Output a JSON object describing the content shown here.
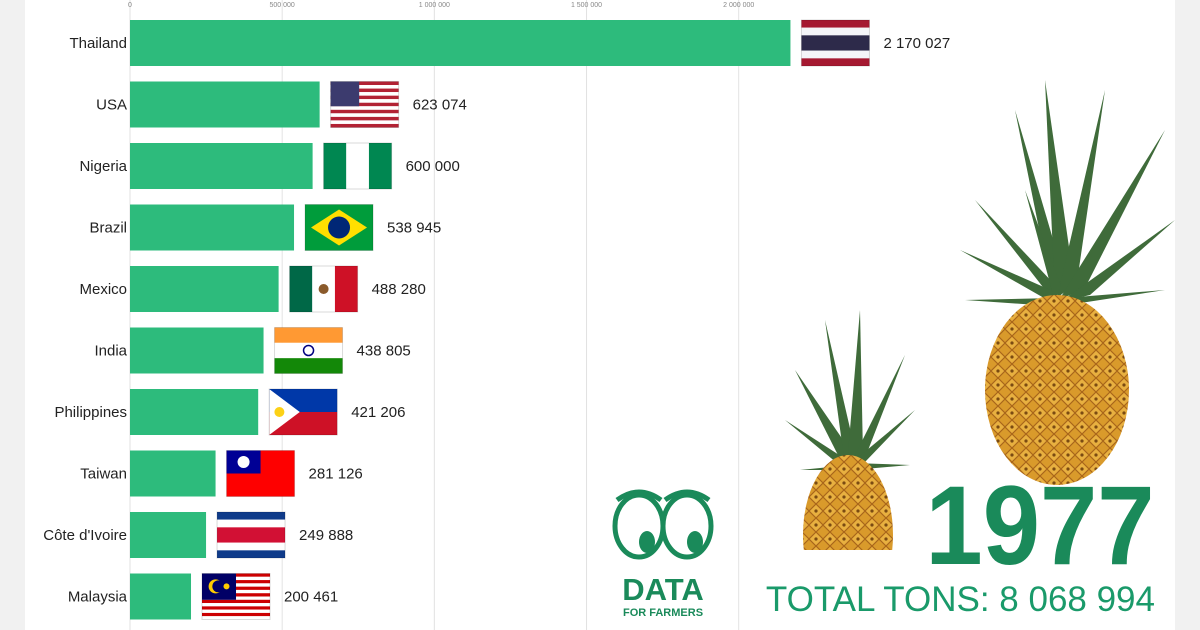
{
  "chart_data": {
    "type": "bar",
    "orientation": "horizontal",
    "categories": [
      "Thailand",
      "USA",
      "Nigeria",
      "Brazil",
      "Mexico",
      "India",
      "Philippines",
      "Taiwan",
      "Côte d'Ivoire",
      "Malaysia"
    ],
    "values": [
      2170027,
      623074,
      600000,
      538945,
      488280,
      438805,
      421206,
      281126,
      249888,
      200461
    ],
    "value_labels": [
      "2 170 027",
      "623 074",
      "600 000",
      "538 945",
      "488 280",
      "438 805",
      "421 206",
      "281 126",
      "249 888",
      "200 461"
    ],
    "xlim": [
      0,
      2300000
    ],
    "xticks": [
      0,
      500000,
      1000000,
      1500000,
      2000000
    ],
    "xtick_labels": [
      "0",
      "500 000",
      "1 000 000",
      "1 500 000",
      "2 000 000"
    ],
    "grid": true,
    "bar_color": "#2dbb7c",
    "flags": [
      "thailand-flag",
      "usa-flag",
      "nigeria-flag",
      "brazil-flag",
      "mexico-flag",
      "india-flag",
      "philippines-flag",
      "taiwan-flag",
      "cote-divoire-flag",
      "malaysia-flag"
    ]
  },
  "year": "1977",
  "total": "TOTAL TONS: 8 068 994",
  "logo": {
    "line1": "DATA",
    "line2": "FOR FARMERS"
  },
  "colors": {
    "accent": "#1a8a5a",
    "bar": "#2dbb7c"
  },
  "decor": [
    "pineapple-large-icon",
    "pineapple-small-icon"
  ]
}
